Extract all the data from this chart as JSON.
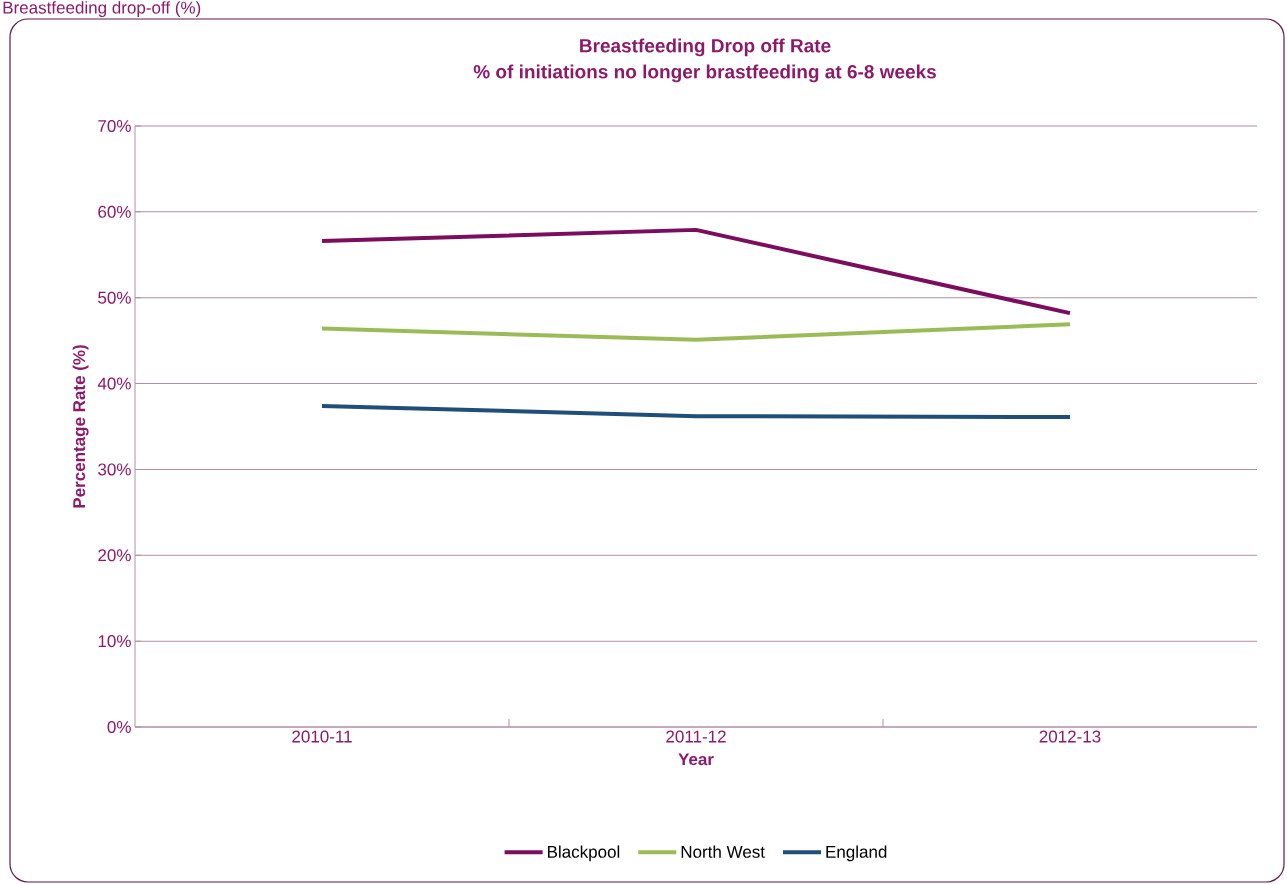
{
  "chart_data": {
    "type": "line",
    "title": "Breastfeeding Drop off Rate",
    "subtitle": "% of initiations no longer brastfeeding at 6-8 weeks",
    "annotations": [
      "Breastfeeding drop-off (%)"
    ],
    "xlabel": "Year",
    "ylabel": "Percentage Rate (%)",
    "categories": [
      "2010-11",
      "2011-12",
      "2012-13"
    ],
    "series": [
      {
        "name": "Blackpool",
        "color": "#7b0c5e",
        "values": [
          56.6,
          57.9,
          48.2
        ]
      },
      {
        "name": "North West",
        "color": "#9bbb59",
        "values": [
          46.4,
          45.1,
          46.9
        ]
      },
      {
        "name": "England",
        "color": "#1f4e79",
        "values": [
          37.4,
          36.2,
          36.1
        ]
      }
    ],
    "ylim": [
      0,
      70
    ],
    "yticks": [
      {
        "value": 0,
        "label": "0%"
      },
      {
        "value": 10,
        "label": "10%"
      },
      {
        "value": 20,
        "label": "20%"
      },
      {
        "value": 30,
        "label": "30%"
      },
      {
        "value": 40,
        "label": "40%"
      },
      {
        "value": 50,
        "label": "50%"
      },
      {
        "value": 60,
        "label": "60%"
      },
      {
        "value": 70,
        "label": "70%"
      }
    ],
    "grid": "y",
    "legend": "bottom",
    "line_style": "solid"
  }
}
